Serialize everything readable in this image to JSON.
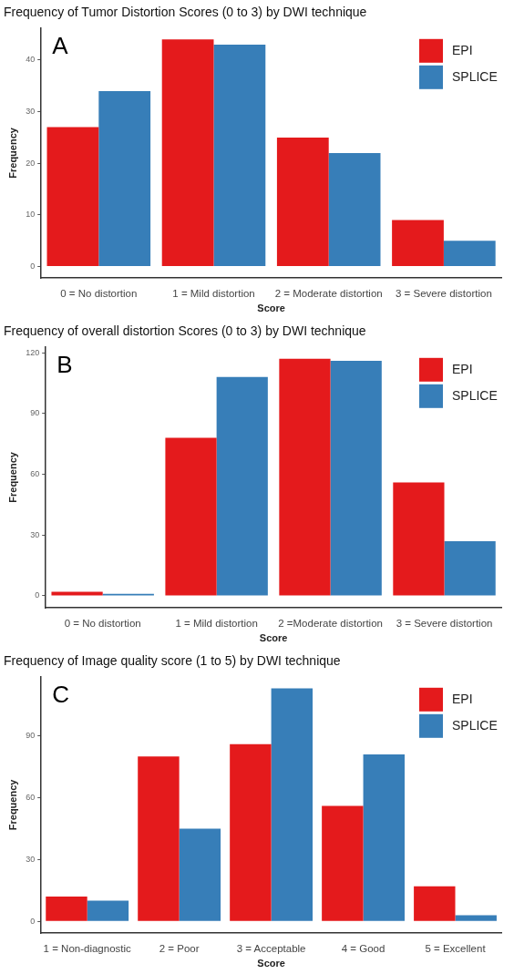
{
  "chart_data": [
    {
      "type": "bar",
      "title": "Frequency of Tumor Distortion Scores (0 to 3) by DWI technique",
      "xlabel": "Score",
      "ylabel": "Frequency",
      "annotations": [
        "A"
      ],
      "categories": [
        "0 = No distortion",
        "1 = Mild distortion",
        "2 = Moderate distortion",
        "3 = Severe distortion"
      ],
      "series": [
        {
          "name": "EPI",
          "color": "#e41a1c",
          "values": [
            27,
            44,
            25,
            9
          ]
        },
        {
          "name": "SPLICE",
          "color": "#377eb8",
          "values": [
            34,
            43,
            22,
            5
          ]
        }
      ],
      "ylim": [
        -2.2,
        46.2
      ],
      "yticks": [
        0,
        10,
        20,
        30,
        40
      ],
      "grid": false,
      "legend": "top right"
    },
    {
      "type": "bar",
      "title": "Frequency of overall distortion Scores (0 to 3) by DWI technique",
      "xlabel": "Score",
      "ylabel": "Frequency",
      "annotations": [
        "B"
      ],
      "categories": [
        "0 = No distortion",
        "1 = Mild distortion",
        "2 =Moderate distortion",
        "3 = Severe distortion"
      ],
      "series": [
        {
          "name": "EPI",
          "color": "#e41a1c",
          "values": [
            2,
            78,
            117,
            56
          ]
        },
        {
          "name": "SPLICE",
          "color": "#377eb8",
          "values": [
            1,
            108,
            116,
            27
          ]
        }
      ],
      "ylim": [
        -5.85,
        122.85
      ],
      "yticks": [
        0,
        30,
        60,
        90,
        120
      ],
      "grid": false,
      "legend": "top right"
    },
    {
      "type": "bar",
      "title": "Frequency of Image quality score (1 to 5) by DWI technique",
      "xlabel": "Score",
      "ylabel": "Frequency",
      "annotations": [
        "C"
      ],
      "categories": [
        "1 = Non-diagnostic",
        "2 = Poor",
        "3 = Acceptable",
        "4 = Good",
        "5 = Excellent"
      ],
      "series": [
        {
          "name": "EPI",
          "color": "#e41a1c",
          "values": [
            12,
            80,
            86,
            56,
            17
          ]
        },
        {
          "name": "SPLICE",
          "color": "#377eb8",
          "values": [
            10,
            45,
            113,
            81,
            3
          ]
        }
      ],
      "ylim": [
        -5.65,
        118.65
      ],
      "yticks": [
        0,
        30,
        60,
        90
      ],
      "grid": false,
      "legend": "top right"
    }
  ]
}
